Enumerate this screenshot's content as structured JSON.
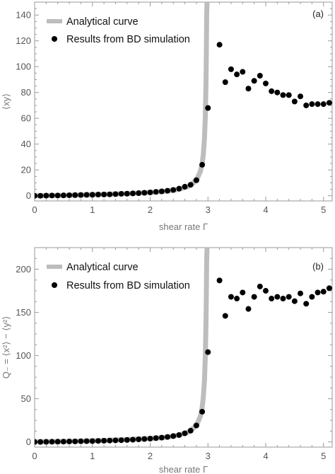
{
  "chart_data": [
    {
      "type": "scatter",
      "panel_tag": "(a)",
      "xlabel": "shear rate Γ",
      "ylabel": "⟨xy⟩",
      "xlim": [
        0,
        5.15
      ],
      "ylim": [
        -4,
        150
      ],
      "xticks": [
        0,
        1,
        2,
        3,
        4,
        5
      ],
      "yticks": [
        0,
        20,
        40,
        60,
        80,
        100,
        120,
        140
      ],
      "legend": {
        "placement": "top-left",
        "entries": [
          "Analytical curve",
          "Results from BD simulation"
        ]
      },
      "series": [
        {
          "name": "Analytical curve",
          "style": "curve",
          "color": "#bdbdbd",
          "x": [
            0,
            0.5,
            1.0,
            1.5,
            2.0,
            2.3,
            2.5,
            2.65,
            2.75,
            2.82,
            2.87,
            2.9,
            2.92,
            2.94,
            2.955,
            2.965,
            2.972,
            2.978,
            2.984
          ],
          "y": [
            0,
            0.3,
            0.8,
            1.5,
            2.6,
            3.6,
            5.0,
            7.0,
            10,
            14,
            19,
            25,
            32,
            45,
            62,
            85,
            110,
            140,
            150
          ]
        },
        {
          "name": "Results from BD simulation",
          "style": "points",
          "color": "#000000",
          "x": [
            0.0,
            0.1,
            0.2,
            0.3,
            0.4,
            0.5,
            0.6,
            0.7,
            0.8,
            0.9,
            1.0,
            1.1,
            1.2,
            1.3,
            1.4,
            1.5,
            1.6,
            1.7,
            1.8,
            1.9,
            2.0,
            2.1,
            2.2,
            2.3,
            2.4,
            2.5,
            2.6,
            2.7,
            2.8,
            2.9,
            3.0,
            3.2,
            3.3,
            3.4,
            3.5,
            3.6,
            3.7,
            3.8,
            3.9,
            4.0,
            4.1,
            4.2,
            4.3,
            4.4,
            4.5,
            4.6,
            4.7,
            4.8,
            4.9,
            5.0,
            5.1
          ],
          "y": [
            0.0,
            0.0,
            0.1,
            0.2,
            0.2,
            0.3,
            0.4,
            0.5,
            0.6,
            0.7,
            0.8,
            0.9,
            1.0,
            1.1,
            1.3,
            1.5,
            1.6,
            1.8,
            2.0,
            2.3,
            2.6,
            3.0,
            3.4,
            3.9,
            4.5,
            5.5,
            7.0,
            8.5,
            12,
            24,
            68,
            117,
            88,
            98,
            94,
            96,
            83,
            89,
            93,
            87,
            81,
            80,
            78,
            78,
            73,
            77,
            70,
            71,
            71,
            71,
            72
          ]
        }
      ]
    },
    {
      "type": "scatter",
      "panel_tag": "(b)",
      "xlabel": "shear rate Γ",
      "ylabel": "Q₋ = ⟨x²⟩ − ⟨y²⟩",
      "xlim": [
        0,
        5.15
      ],
      "ylim": [
        -6,
        225
      ],
      "xticks": [
        0,
        1,
        2,
        3,
        4,
        5
      ],
      "yticks": [
        0,
        50,
        100,
        150,
        200
      ],
      "legend": {
        "placement": "top-left",
        "entries": [
          "Analytical curve",
          "Results from BD simulation"
        ]
      },
      "series": [
        {
          "name": "Analytical curve",
          "style": "curve",
          "color": "#bdbdbd",
          "x": [
            0,
            0.5,
            1.0,
            1.5,
            2.0,
            2.3,
            2.5,
            2.65,
            2.75,
            2.82,
            2.87,
            2.9,
            2.92,
            2.94,
            2.955,
            2.965,
            2.972,
            2.978,
            2.984
          ],
          "y": [
            0,
            0.5,
            1.2,
            2.5,
            4.0,
            5.5,
            8.0,
            11,
            16,
            22,
            30,
            40,
            52,
            72,
            100,
            135,
            170,
            210,
            225
          ]
        },
        {
          "name": "Results from BD simulation",
          "style": "points",
          "color": "#000000",
          "x": [
            0.0,
            0.1,
            0.2,
            0.3,
            0.4,
            0.5,
            0.6,
            0.7,
            0.8,
            0.9,
            1.0,
            1.1,
            1.2,
            1.3,
            1.4,
            1.5,
            1.6,
            1.7,
            1.8,
            1.9,
            2.0,
            2.1,
            2.2,
            2.3,
            2.4,
            2.5,
            2.6,
            2.7,
            2.8,
            2.9,
            3.0,
            3.2,
            3.3,
            3.4,
            3.5,
            3.6,
            3.7,
            3.8,
            3.9,
            4.0,
            4.1,
            4.2,
            4.3,
            4.4,
            4.5,
            4.6,
            4.7,
            4.8,
            4.9,
            5.0,
            5.1
          ],
          "y": [
            0.0,
            0.0,
            0.1,
            0.2,
            0.3,
            0.4,
            0.5,
            0.6,
            0.8,
            0.9,
            1.0,
            1.2,
            1.4,
            1.6,
            1.8,
            2.0,
            2.3,
            2.6,
            3.0,
            3.4,
            3.8,
            4.4,
            5.0,
            5.8,
            6.8,
            8.0,
            10,
            13,
            19,
            35,
            104,
            187,
            146,
            168,
            166,
            173,
            154,
            168,
            180,
            175,
            166,
            168,
            166,
            168,
            163,
            172,
            160,
            168,
            173,
            174,
            178
          ]
        }
      ]
    }
  ]
}
